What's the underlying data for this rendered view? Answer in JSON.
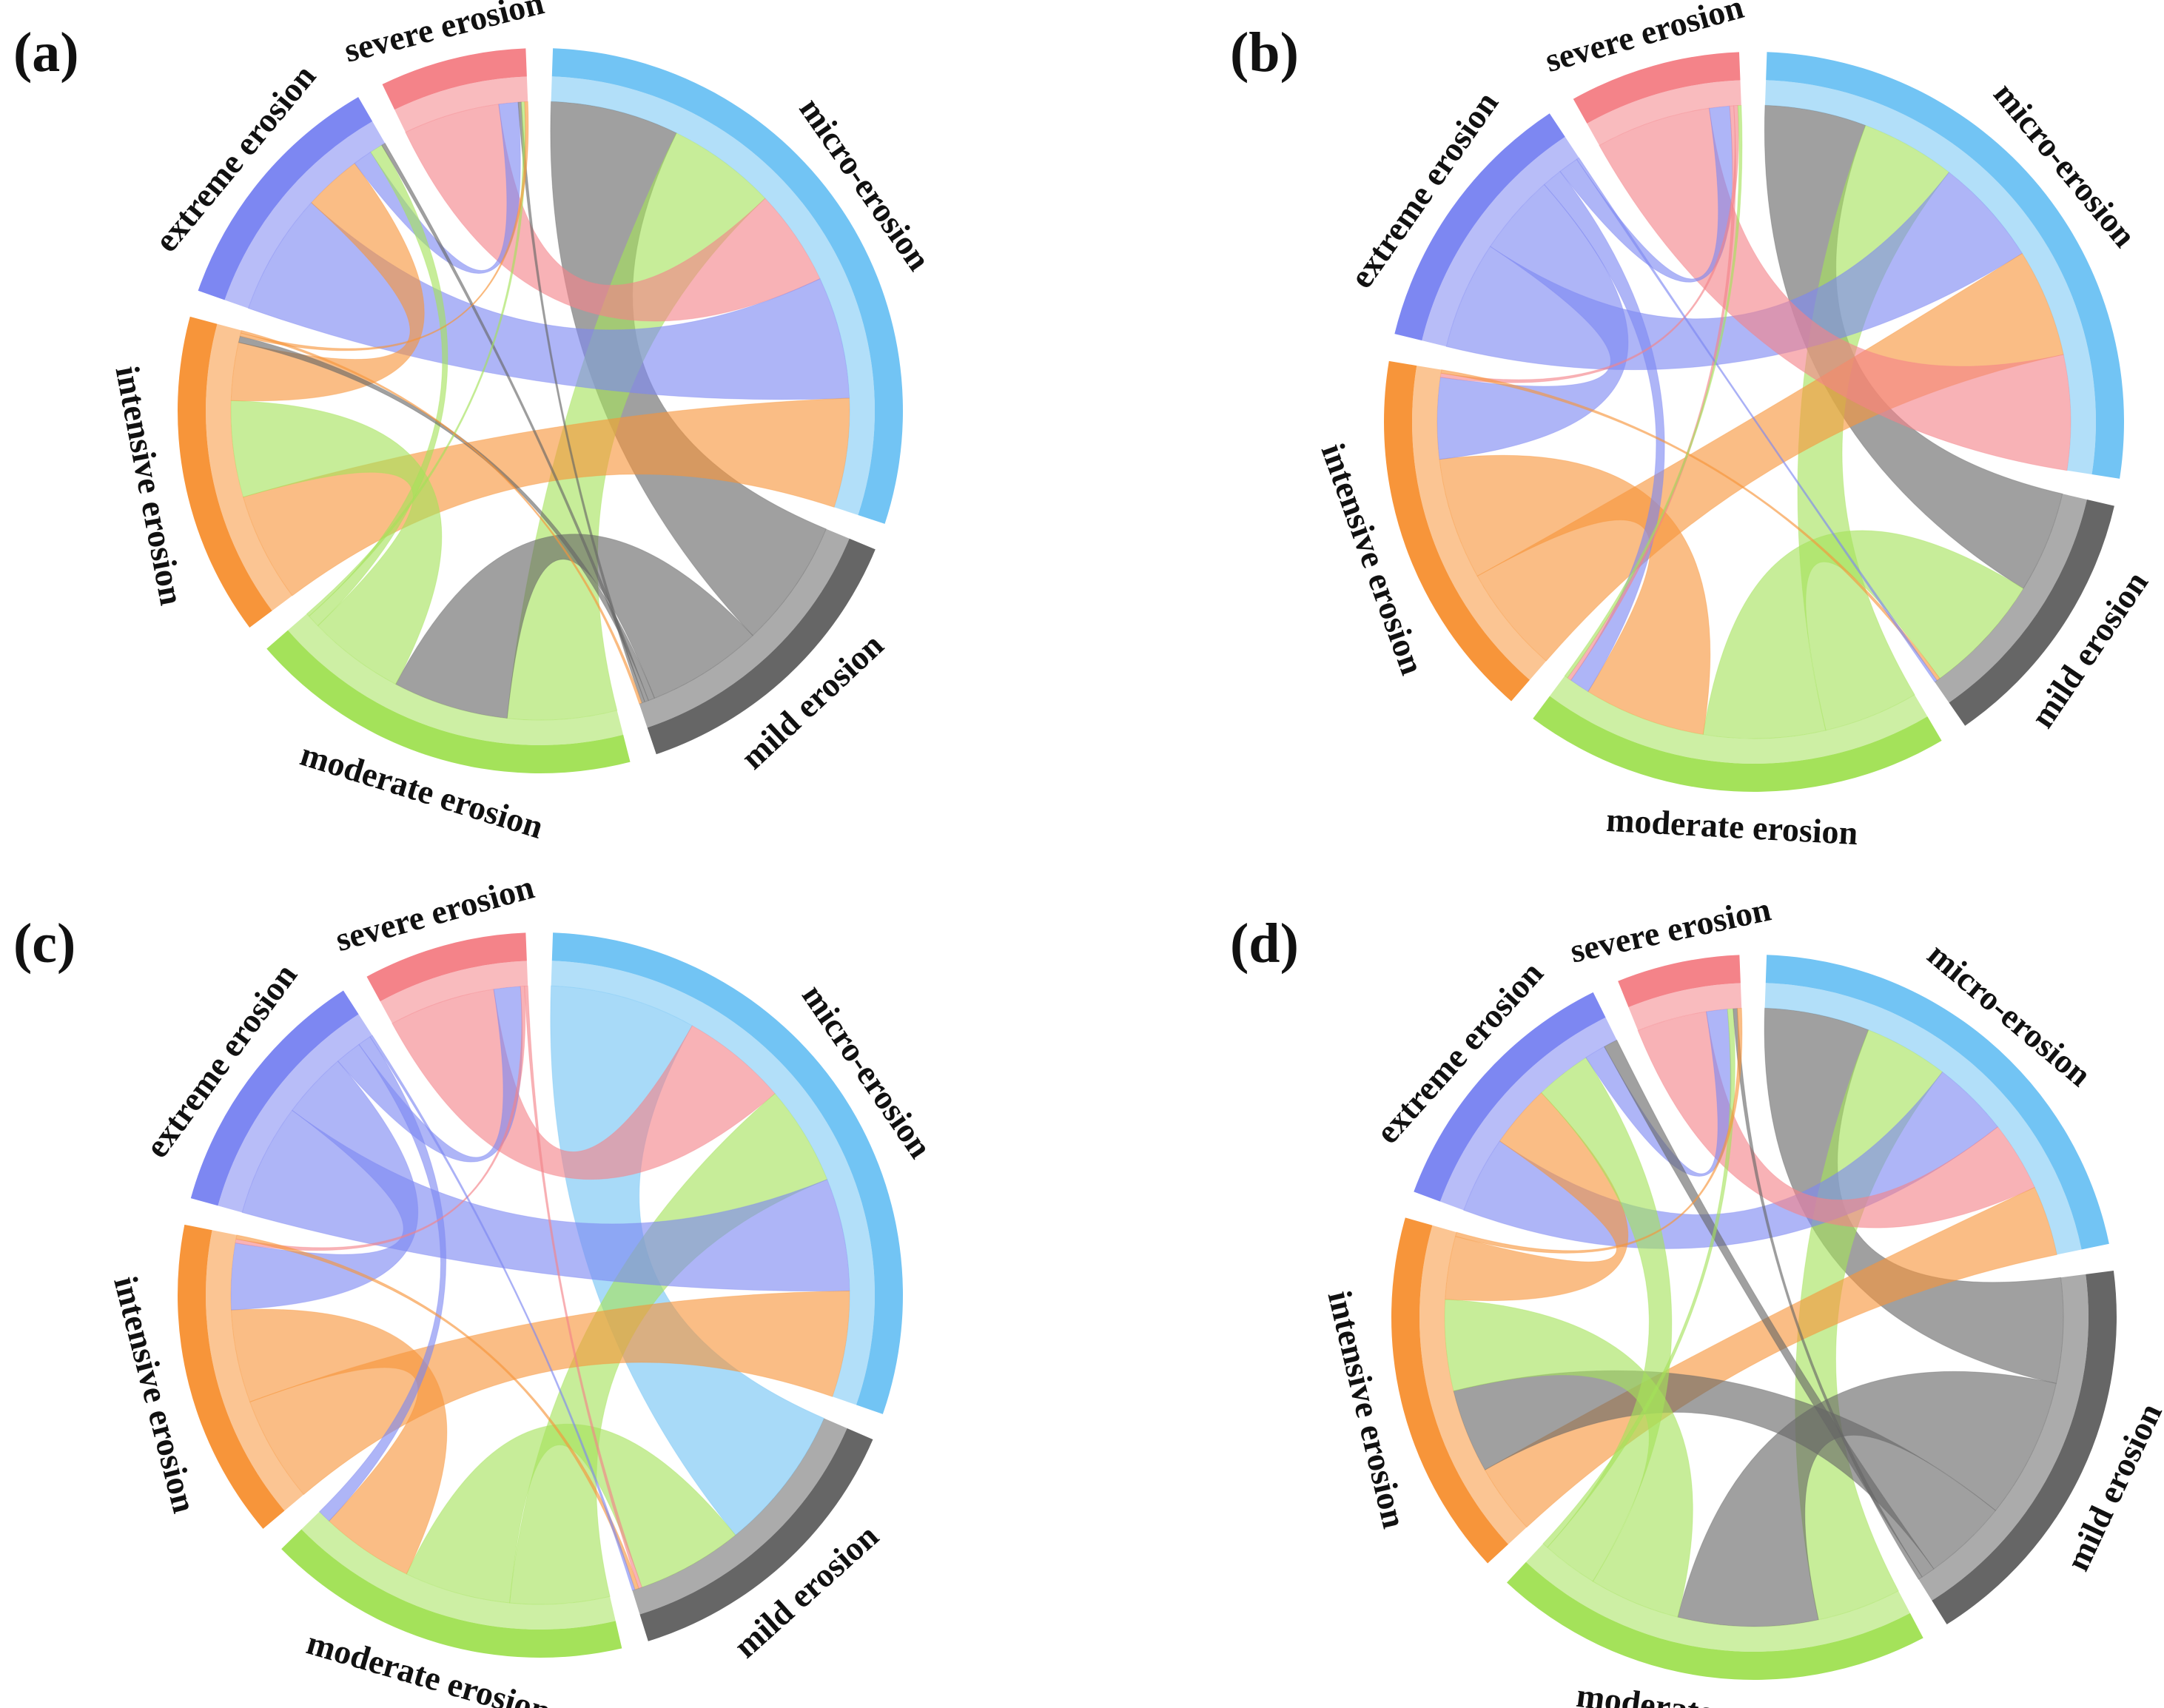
{
  "figure": {
    "panel_letters": [
      "(a)",
      "(b)",
      "(c)",
      "(d)"
    ]
  },
  "colors": {
    "micro-erosion": "#72c4f4",
    "mild erosion": "#666666",
    "moderate erosion": "#a4e25a",
    "intensive erosion": "#f7953a",
    "extreme erosion": "#7d87f2",
    "severe erosion": "#f48389"
  },
  "chart_data": [
    {
      "type": "chord",
      "panel": "(a)",
      "categories": [
        "micro-erosion",
        "mild erosion",
        "moderate erosion",
        "intensive erosion",
        "extreme erosion",
        "severe erosion"
      ],
      "start_angle_deg": 2,
      "labels": [
        {
          "category": "micro-erosion",
          "text": "micro-erosion"
        },
        {
          "category": "mild erosion",
          "text": "mild erosion"
        },
        {
          "category": "moderate erosion",
          "text": "moderate erosion"
        },
        {
          "category": "intensive erosion",
          "text": "intensive erosion"
        },
        {
          "category": "extreme erosion",
          "text": "extreme erosion"
        },
        {
          "category": "severe erosion",
          "text": "severe erosion"
        }
      ],
      "flows": [
        [
          "mild erosion",
          "micro-erosion",
          20
        ],
        [
          "moderate erosion",
          "micro-erosion",
          17
        ],
        [
          "severe erosion",
          "micro-erosion",
          15
        ],
        [
          "extreme erosion",
          "micro-erosion",
          19
        ],
        [
          "intensive erosion",
          "micro-erosion",
          17
        ],
        [
          "mild erosion",
          "moderate erosion",
          18
        ],
        [
          "moderate erosion",
          "intensive erosion",
          15
        ],
        [
          "intensive erosion",
          "extreme erosion",
          9
        ],
        [
          "extreme erosion",
          "severe erosion",
          3
        ],
        [
          "moderate erosion",
          "extreme erosion",
          2
        ],
        [
          "mild erosion",
          "intensive erosion",
          1
        ],
        [
          "mild erosion",
          "extreme erosion",
          0.6
        ],
        [
          "mild erosion",
          "severe erosion",
          0.5
        ],
        [
          "moderate erosion",
          "severe erosion",
          0.5
        ],
        [
          "intensive erosion",
          "severe erosion",
          0.5
        ],
        [
          "intensive erosion",
          "mild erosion",
          0.4
        ]
      ]
    },
    {
      "type": "chord",
      "panel": "(b)",
      "categories": [
        "micro-erosion",
        "mild erosion",
        "moderate erosion",
        "intensive erosion",
        "extreme erosion",
        "severe erosion"
      ],
      "start_angle_deg": 2,
      "labels": [
        {
          "category": "micro-erosion",
          "text": "micro-erosion"
        },
        {
          "category": "mild erosion",
          "text": "mild erosion"
        },
        {
          "category": "moderate erosion",
          "text": "moderate erosion"
        },
        {
          "category": "intensive erosion",
          "text": "intensive erosion"
        },
        {
          "category": "extreme erosion",
          "text": "extreme erosion"
        },
        {
          "category": "severe erosion",
          "text": "severe erosion"
        }
      ],
      "flows": [
        [
          "mild erosion",
          "micro-erosion",
          15
        ],
        [
          "moderate erosion",
          "micro-erosion",
          14
        ],
        [
          "extreme erosion",
          "micro-erosion",
          16
        ],
        [
          "intensive erosion",
          "micro-erosion",
          16
        ],
        [
          "severe erosion",
          "micro-erosion",
          17
        ],
        [
          "moderate erosion",
          "mild erosion",
          18
        ],
        [
          "intensive erosion",
          "moderate erosion",
          18
        ],
        [
          "extreme erosion",
          "intensive erosion",
          12
        ],
        [
          "extreme erosion",
          "moderate erosion",
          3
        ],
        [
          "extreme erosion",
          "severe erosion",
          3
        ],
        [
          "severe erosion",
          "moderate erosion",
          0.6
        ],
        [
          "severe erosion",
          "intensive erosion",
          0.6
        ],
        [
          "intensive erosion",
          "mild erosion",
          0.5
        ],
        [
          "extreme erosion",
          "mild erosion",
          0.4
        ],
        [
          "moderate erosion",
          "severe erosion",
          0.5
        ]
      ]
    },
    {
      "type": "chord",
      "panel": "(c)",
      "categories": [
        "micro-erosion",
        "mild erosion",
        "moderate erosion",
        "intensive erosion",
        "extreme erosion",
        "severe erosion"
      ],
      "start_angle_deg": 2,
      "labels": [
        {
          "category": "micro-erosion",
          "text": "micro-erosion"
        },
        {
          "category": "mild erosion",
          "text": "mild erosion"
        },
        {
          "category": "moderate erosion",
          "text": "moderate erosion"
        },
        {
          "category": "intensive erosion",
          "text": "intensive erosion"
        },
        {
          "category": "extreme erosion",
          "text": "extreme erosion"
        },
        {
          "category": "severe erosion",
          "text": "severe erosion"
        }
      ],
      "flows": [
        [
          "micro-erosion",
          "mild erosion",
          22
        ],
        [
          "severe erosion",
          "micro-erosion",
          16
        ],
        [
          "moderate erosion",
          "micro-erosion",
          15
        ],
        [
          "extreme erosion",
          "micro-erosion",
          17
        ],
        [
          "intensive erosion",
          "micro-erosion",
          16
        ],
        [
          "moderate erosion",
          "mild erosion",
          16
        ],
        [
          "intensive erosion",
          "moderate erosion",
          14
        ],
        [
          "extreme erosion",
          "intensive erosion",
          10
        ],
        [
          "extreme erosion",
          "severe erosion",
          4
        ],
        [
          "extreme erosion",
          "moderate erosion",
          2
        ],
        [
          "severe erosion",
          "intensive erosion",
          0.6
        ],
        [
          "severe erosion",
          "mild erosion",
          0.5
        ],
        [
          "intensive erosion",
          "mild erosion",
          0.6
        ],
        [
          "extreme erosion",
          "mild erosion",
          0.4
        ]
      ]
    },
    {
      "type": "chord",
      "panel": "(d)",
      "categories": [
        "micro-erosion",
        "mild erosion",
        "moderate erosion",
        "intensive erosion",
        "extreme erosion",
        "severe erosion"
      ],
      "start_angle_deg": 2,
      "labels": [
        {
          "category": "micro-erosion",
          "text": "micro-erosion"
        },
        {
          "category": "mild erosion",
          "text": "mild erosion"
        },
        {
          "category": "moderate erosion",
          "text": "moderate erosion"
        },
        {
          "category": "intensive erosion",
          "text": "intensive erosion"
        },
        {
          "category": "extreme erosion",
          "text": "extreme erosion"
        },
        {
          "category": "severe erosion",
          "text": "severe erosion"
        }
      ],
      "flows": [
        [
          "mild erosion",
          "micro-erosion",
          15
        ],
        [
          "moderate erosion",
          "micro-erosion",
          12
        ],
        [
          "extreme erosion",
          "micro-erosion",
          11
        ],
        [
          "severe erosion",
          "micro-erosion",
          10
        ],
        [
          "intensive erosion",
          "micro-erosion",
          10
        ],
        [
          "mild erosion",
          "moderate erosion",
          20
        ],
        [
          "mild erosion",
          "intensive erosion",
          12
        ],
        [
          "moderate erosion",
          "intensive erosion",
          13
        ],
        [
          "intensive erosion",
          "extreme erosion",
          9
        ],
        [
          "moderate erosion",
          "extreme erosion",
          8
        ],
        [
          "extreme erosion",
          "severe erosion",
          3
        ],
        [
          "mild erosion",
          "extreme erosion",
          2
        ],
        [
          "moderate erosion",
          "severe erosion",
          0.8
        ],
        [
          "mild erosion",
          "severe erosion",
          0.6
        ],
        [
          "intensive erosion",
          "severe erosion",
          0.6
        ]
      ]
    }
  ]
}
